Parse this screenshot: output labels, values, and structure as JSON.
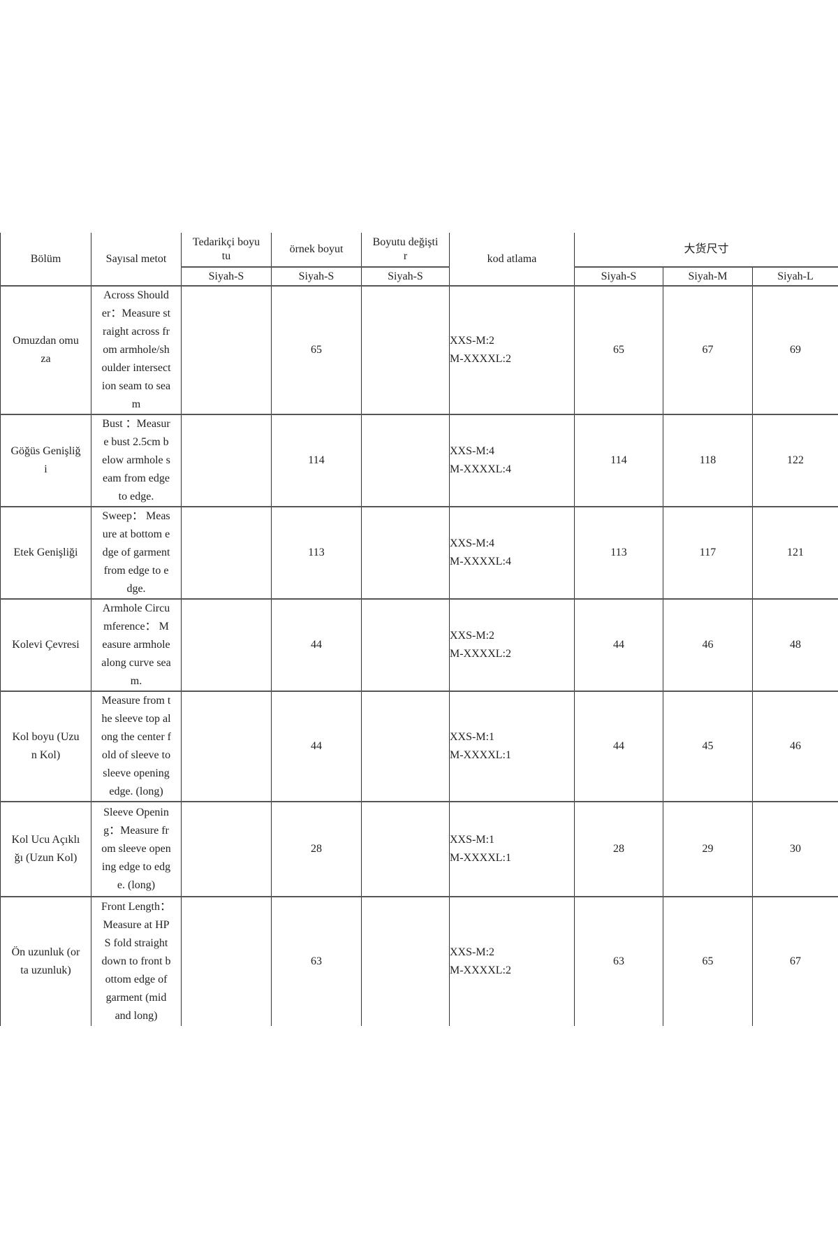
{
  "headers": {
    "section": "Bölüm",
    "method": "Sayısal metot",
    "supplier_size": "Tedarikçi boyu\ntu",
    "sample_size": "örnek boyut",
    "size_change": "Boyutu değişti\nr",
    "code_skip": "kod atlama",
    "bulk_size": "大货尺寸",
    "sub": {
      "supplier": "Siyah-S",
      "sample": "Siyah-S",
      "change": "Siyah-S",
      "bulk_s": "Siyah-S",
      "bulk_m": "Siyah-M",
      "bulk_l": "Siyah-L"
    }
  },
  "rows": [
    {
      "section": "Omuzdan omu\nza",
      "method": "Across Should\ner：Measure st\nraight across fr\nom armhole/sh\noulder intersect\nion seam to sea\nm",
      "supplier": "",
      "sample": "65",
      "change": "",
      "kod": "XXS-M:2\nM-XXXXL:2",
      "s": "65",
      "m": "67",
      "l": "69"
    },
    {
      "section": "Göğüs Genişliğ\ni",
      "method": "Bust ：Measur\ne bust 2.5cm b\nelow armhole s\neam from edge\nto edge.",
      "supplier": "",
      "sample": "114",
      "change": "",
      "kod": "XXS-M:4\nM-XXXXL:4",
      "s": "114",
      "m": "118",
      "l": "122"
    },
    {
      "section": "Etek Genişliği",
      "method": "Sweep： Meas\nure at bottom e\ndge of garment\nfrom edge to e\ndge.",
      "supplier": "",
      "sample": "113",
      "change": "",
      "kod": "XXS-M:4\nM-XXXXL:4",
      "s": "113",
      "m": "117",
      "l": "121"
    },
    {
      "section": "Kolevi Çevresi",
      "method": "Armhole Circu\nmference： M\neasure armhole\nalong curve sea\nm.",
      "supplier": "",
      "sample": "44",
      "change": "",
      "kod": "XXS-M:2\nM-XXXXL:2",
      "s": "44",
      "m": "46",
      "l": "48"
    },
    {
      "section": "Kol boyu (Uzu\nn Kol)",
      "method": "Measure from t\nhe sleeve top al\nong the center f\nold of sleeve to\nsleeve opening\nedge. (long)",
      "supplier": "",
      "sample": "44",
      "change": "",
      "kod": "XXS-M:1\nM-XXXXL:1",
      "s": "44",
      "m": "45",
      "l": "46"
    },
    {
      "section": "Kol Ucu Açıklı\nğı (Uzun Kol)",
      "method": "Sleeve Openin\ng：Measure fr\nom sleeve open\ning edge to edg\ne. (long)",
      "supplier": "",
      "sample": "28",
      "change": "",
      "kod": "XXS-M:1\nM-XXXXL:1",
      "s": "28",
      "m": "29",
      "l": "30"
    },
    {
      "section": "Ön uzunluk (or\nta uzunluk)",
      "method": "Front Length：\nMeasure at HP\nS fold straight\ndown to front b\nottom edge of\ngarment (mid\nand long)",
      "supplier": "",
      "sample": "63",
      "change": "",
      "kod": "XXS-M:2\nM-XXXXL:2",
      "s": "63",
      "m": "65",
      "l": "67"
    }
  ]
}
